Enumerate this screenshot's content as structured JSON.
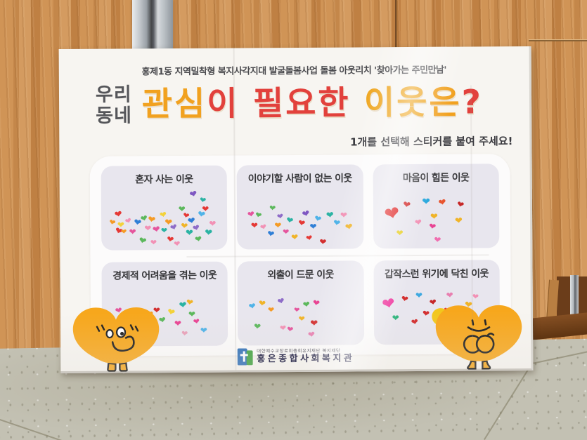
{
  "poster": {
    "program_line": "홍제1동 지역밀착형 복지사각지대 발굴돌봄사업 돌봄 아웃리치 '찾아가는 주민만남'",
    "title_prefix_line1": "우리",
    "title_prefix_line2": "동네",
    "title_segments": [
      {
        "text": "관심",
        "color": "#f1a11f"
      },
      {
        "text": "이",
        "color": "#e2413c"
      },
      {
        "text": " 필요한",
        "color": "#e2413c"
      },
      {
        "text": " 이웃",
        "color": "#efa722"
      },
      {
        "text": "은",
        "color": "#f1a11f"
      },
      {
        "text": "?",
        "color": "#e2413c"
      }
    ],
    "instruction": "1개를 선택해 스티커를 붙여 주세요!",
    "panels": [
      {
        "title": "혼자 사는 이웃",
        "hearts": [
          [
            8,
            38,
            13,
            "#e53935",
            -10
          ],
          [
            3,
            52,
            11,
            "#f59b25",
            15
          ],
          [
            10,
            56,
            12,
            "#f3d23a",
            0
          ],
          [
            17,
            50,
            11,
            "#f291b5",
            -20
          ],
          [
            24,
            52,
            13,
            "#2f7fd6",
            10
          ],
          [
            20,
            68,
            12,
            "#e5559d",
            0
          ],
          [
            8,
            66,
            13,
            "#e53935",
            20
          ],
          [
            13,
            70,
            10,
            "#f59b25",
            -5
          ],
          [
            30,
            45,
            12,
            "#5cb85c",
            -15
          ],
          [
            36,
            48,
            13,
            "#f59b25",
            10
          ],
          [
            33,
            62,
            12,
            "#f291b5",
            0
          ],
          [
            40,
            64,
            13,
            "#e5559d",
            -10
          ],
          [
            28,
            82,
            13,
            "#5cb85c",
            15
          ],
          [
            38,
            86,
            11,
            "#f291b5",
            0
          ],
          [
            46,
            40,
            12,
            "#f3d23a",
            -10
          ],
          [
            50,
            52,
            13,
            "#f59b25",
            5
          ],
          [
            47,
            66,
            11,
            "#2bb3a3",
            0
          ],
          [
            55,
            60,
            12,
            "#8e6cc8",
            -20
          ],
          [
            52,
            80,
            12,
            "#e53935",
            10
          ],
          [
            58,
            88,
            11,
            "#f291b5",
            -5
          ],
          [
            62,
            30,
            12,
            "#5cb85c",
            0
          ],
          [
            66,
            42,
            11,
            "#e53935",
            15
          ],
          [
            70,
            50,
            13,
            "#2f7fd6",
            -10
          ],
          [
            64,
            58,
            12,
            "#f0b429",
            5
          ],
          [
            68,
            70,
            13,
            "#2bb3a3",
            0
          ],
          [
            74,
            62,
            12,
            "#8e6cc8",
            -15
          ],
          [
            78,
            40,
            13,
            "#4fb3e8",
            10
          ],
          [
            82,
            30,
            12,
            "#e53935",
            0
          ],
          [
            76,
            80,
            12,
            "#5cb85c",
            -10
          ],
          [
            84,
            70,
            13,
            "#2bb3a3",
            5
          ],
          [
            88,
            55,
            12,
            "#f291b5",
            0
          ],
          [
            72,
            6,
            13,
            "#7e57c2",
            -15
          ],
          [
            80,
            16,
            11,
            "#2bb3a3",
            10
          ]
        ]
      },
      {
        "title": "이야기할 사람이 없는 이웃",
        "hearts": [
          [
            5,
            40,
            12,
            "#e5559d",
            -10
          ],
          [
            12,
            42,
            11,
            "#5cb85c",
            15
          ],
          [
            8,
            58,
            12,
            "#e53935",
            0
          ],
          [
            16,
            62,
            11,
            "#f291b5",
            -15
          ],
          [
            22,
            72,
            12,
            "#2f7fd6",
            10
          ],
          [
            28,
            58,
            12,
            "#f59b25",
            0
          ],
          [
            30,
            44,
            11,
            "#8e6cc8",
            -10
          ],
          [
            38,
            50,
            12,
            "#2bb3a3",
            15
          ],
          [
            35,
            70,
            11,
            "#e5559d",
            0
          ],
          [
            42,
            78,
            12,
            "#f0b429",
            -5
          ],
          [
            48,
            55,
            12,
            "#e53935",
            10
          ],
          [
            52,
            40,
            13,
            "#7e57c2",
            -15
          ],
          [
            58,
            60,
            12,
            "#2f7fd6",
            0
          ],
          [
            62,
            48,
            12,
            "#4fb3e8",
            15
          ],
          [
            55,
            80,
            11,
            "#e53935",
            -10
          ],
          [
            66,
            86,
            12,
            "#d32f2f",
            5
          ],
          [
            72,
            42,
            13,
            "#2bb3a3",
            -5
          ],
          [
            78,
            55,
            12,
            "#4fb3e8",
            10
          ],
          [
            84,
            42,
            12,
            "#f291b5",
            0
          ],
          [
            88,
            62,
            13,
            "#f0b429",
            -10
          ],
          [
            24,
            30,
            11,
            "#5cb85c",
            5
          ]
        ]
      },
      {
        "title": "마음이 힘든 이웃",
        "hearts": [
          [
            6,
            32,
            26,
            "#e02020",
            -12
          ],
          [
            22,
            26,
            13,
            "#d32f2f",
            10
          ],
          [
            38,
            20,
            14,
            "#29a8dd",
            0
          ],
          [
            52,
            22,
            13,
            "#e8552f",
            -10
          ],
          [
            68,
            25,
            12,
            "#c62828",
            15
          ],
          [
            45,
            45,
            13,
            "#f0b429",
            0
          ],
          [
            32,
            55,
            12,
            "#f291b5",
            -10
          ],
          [
            44,
            62,
            12,
            "#e84393",
            10
          ],
          [
            66,
            52,
            13,
            "#f0b429",
            -5
          ],
          [
            16,
            72,
            12,
            "#e8d024",
            0
          ],
          [
            48,
            84,
            12,
            "#f06eb0",
            5
          ]
        ]
      },
      {
        "title": "경제적 어려움을 겪는 이웃",
        "hearts": [
          [
            8,
            38,
            12,
            "#e5559d",
            -10
          ],
          [
            14,
            52,
            11,
            "#8e6cc8",
            10
          ],
          [
            24,
            40,
            11,
            "#f291b5",
            0
          ],
          [
            28,
            52,
            12,
            "#e53935",
            -15
          ],
          [
            34,
            44,
            12,
            "#f59b25",
            10
          ],
          [
            40,
            38,
            12,
            "#d32f2f",
            0
          ],
          [
            45,
            55,
            12,
            "#5cb85c",
            -10
          ],
          [
            52,
            42,
            13,
            "#f3d23a",
            15
          ],
          [
            58,
            60,
            12,
            "#e84393",
            0
          ],
          [
            62,
            30,
            13,
            "#2bb3a3",
            -5
          ],
          [
            68,
            26,
            12,
            "#f0b429",
            10
          ],
          [
            70,
            45,
            12,
            "#5cb85c",
            0
          ],
          [
            74,
            58,
            11,
            "#e84393",
            -10
          ],
          [
            64,
            78,
            11,
            "#e8a0b8",
            5
          ],
          [
            80,
            72,
            12,
            "#4fb3e8",
            0
          ],
          [
            36,
            72,
            11,
            "#f59b25",
            10
          ]
        ]
      },
      {
        "title": "외출이 드문 이웃",
        "hearts": [
          [
            6,
            32,
            12,
            "#4fb3e8",
            -10
          ],
          [
            14,
            28,
            12,
            "#f0b429",
            8
          ],
          [
            22,
            40,
            11,
            "#f59b25",
            0
          ],
          [
            30,
            24,
            12,
            "#8e6cc8",
            -15
          ],
          [
            44,
            42,
            10,
            "#e5559d",
            5
          ],
          [
            52,
            30,
            12,
            "#5cb85c",
            -8
          ],
          [
            60,
            28,
            12,
            "#e84393",
            10
          ],
          [
            48,
            55,
            11,
            "#f0b429",
            0
          ],
          [
            10,
            66,
            12,
            "#5cb85c",
            5
          ],
          [
            32,
            70,
            11,
            "#f291b5",
            -5
          ],
          [
            38,
            72,
            11,
            "#e5559d",
            8
          ],
          [
            58,
            62,
            13,
            "#d32f2f",
            0
          ],
          [
            56,
            80,
            12,
            "#e87fb0",
            -8
          ]
        ]
      },
      {
        "title": "갑작스런 위기에 닥친 이웃",
        "hearts": [
          [
            4,
            26,
            22,
            "#ef3aa0",
            -12
          ],
          [
            20,
            22,
            12,
            "#d32f2f",
            10
          ],
          [
            32,
            16,
            12,
            "#3fa9e0",
            0
          ],
          [
            44,
            28,
            12,
            "#c62828",
            -8
          ],
          [
            38,
            46,
            12,
            "#d32f2f",
            8
          ],
          [
            12,
            54,
            12,
            "#2bb37a",
            0
          ],
          [
            28,
            60,
            12,
            "#d32f2f",
            -10
          ],
          [
            48,
            58,
            12,
            "#5cb85c",
            5
          ],
          [
            58,
            16,
            12,
            "#e87fb0",
            -5
          ],
          [
            74,
            32,
            13,
            "#f0b429",
            8
          ],
          [
            56,
            42,
            11,
            "#e53935",
            0
          ],
          [
            66,
            56,
            11,
            "#2bb3a3",
            -8
          ],
          [
            80,
            20,
            11,
            "#f291b5",
            5
          ]
        ]
      }
    ],
    "footer": {
      "foundation_line": "대한예수교장로회총회유지재단 복지재단",
      "org_name": "홍은종합사회복지관"
    }
  },
  "colors": {
    "wall_wood": "#c98a4c",
    "floor": "#c3c1b3",
    "poster_bg": "#f7f5f1",
    "panel_bg": "#e8e6ee",
    "character_orange": "#f7a71c",
    "title_orange": "#f1a11f",
    "title_red": "#e2413c",
    "logo_blue": "#2e6fb7",
    "logo_green": "#3fa23e"
  }
}
